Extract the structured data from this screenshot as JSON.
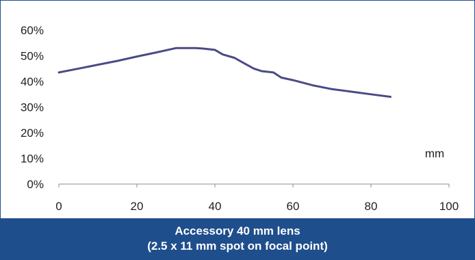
{
  "chart_data": {
    "type": "line",
    "title": "",
    "xlabel": "",
    "ylabel": "",
    "unit_label": "mm",
    "xlim": [
      0,
      100
    ],
    "ylim": [
      0,
      60
    ],
    "x_ticks": [
      "0",
      "20",
      "40",
      "60",
      "80",
      "100"
    ],
    "y_ticks": [
      "0%",
      "10%",
      "20%",
      "30%",
      "40%",
      "50%",
      "60%"
    ],
    "grid": false,
    "legend": "none",
    "series": [
      {
        "color": "#4b4a86",
        "x": [
          0,
          5,
          10,
          15,
          20,
          25,
          30,
          33,
          35,
          37,
          40,
          42,
          45,
          47,
          50,
          52,
          55,
          57,
          60,
          65,
          70,
          75,
          80,
          85
        ],
        "y": [
          43.5,
          45,
          46.5,
          48,
          49.7,
          51.3,
          53,
          53,
          53,
          52.8,
          52.3,
          50.5,
          49.2,
          47.5,
          45,
          44,
          43.5,
          41.5,
          40.5,
          38.5,
          37,
          36,
          35,
          34
        ]
      }
    ]
  },
  "caption": {
    "line1": "Accessory 40 mm lens",
    "line2": "(2.5 x 11 mm spot on focal point)"
  }
}
